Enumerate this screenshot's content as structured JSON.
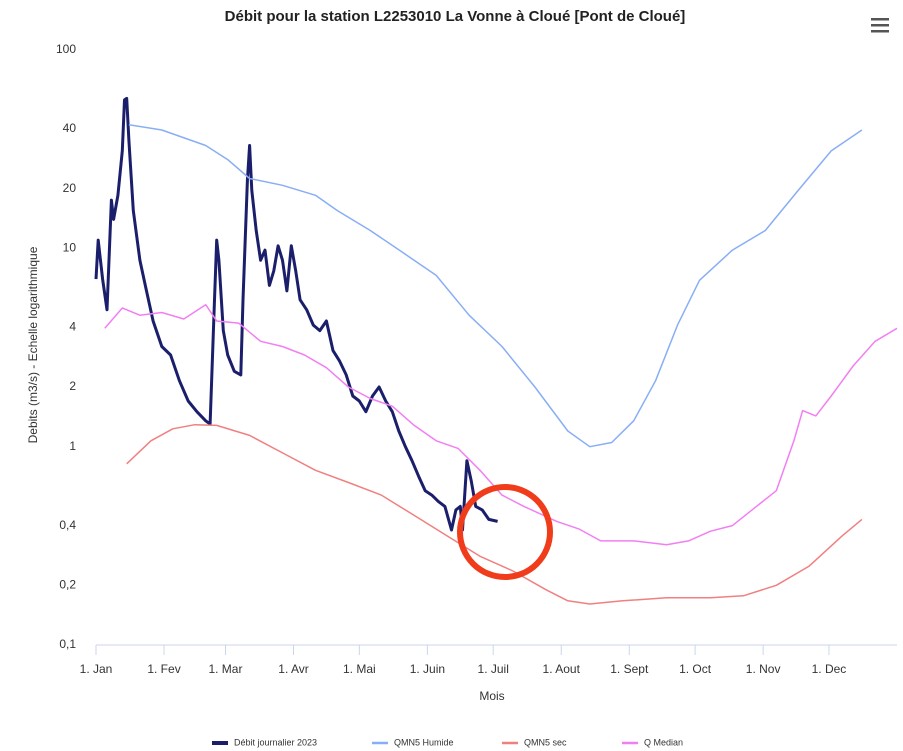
{
  "chart_data": {
    "type": "line",
    "title": "Débit pour la station L2253010 La Vonne à Cloué [Pont de Cloué]",
    "y_label": "Debits (m3/s) - Echelle logarithmique",
    "x_label": "Mois",
    "log_y": true,
    "grid": false,
    "legend": "bottom",
    "xlim": [
      0,
      365
    ],
    "xticks": [
      {
        "value": 0,
        "label": "1. Jan"
      },
      {
        "value": 31,
        "label": "1. Fev"
      },
      {
        "value": 59,
        "label": "1. Mar"
      },
      {
        "value": 90,
        "label": "1. Avr"
      },
      {
        "value": 120,
        "label": "1. Mai"
      },
      {
        "value": 151,
        "label": "1. Juin"
      },
      {
        "value": 181,
        "label": "1. Juil"
      },
      {
        "value": 212,
        "label": "1. Aout"
      },
      {
        "value": 243,
        "label": "1. Sept"
      },
      {
        "value": 273,
        "label": "1. Oct"
      },
      {
        "value": 304,
        "label": "1. Nov"
      },
      {
        "value": 334,
        "label": "1. Dec"
      }
    ],
    "ylim": [
      0.1,
      100
    ],
    "yticks": [
      {
        "value": 0.1,
        "label": "0,1"
      },
      {
        "value": 0.2,
        "label": "0,2"
      },
      {
        "value": 0.4,
        "label": "0,4"
      },
      1,
      2,
      4,
      10,
      20,
      40,
      100
    ],
    "series": [
      {
        "name": "Débit journalier 2023",
        "color": "#1b1f6b",
        "width": 3,
        "x": [
          0,
          1,
          3,
          5,
          7,
          8,
          10,
          12,
          13,
          14,
          15,
          17,
          20,
          23,
          26,
          30,
          34,
          38,
          42,
          46,
          50,
          52,
          54,
          55,
          56,
          58,
          60,
          63,
          66,
          67,
          69,
          70,
          71,
          73,
          75,
          77,
          79,
          81,
          83,
          85,
          87,
          89,
          91,
          93,
          96,
          99,
          102,
          105,
          108,
          111,
          114,
          117,
          120,
          123,
          126,
          129,
          132,
          135,
          138,
          141,
          144,
          147,
          150,
          153,
          156,
          159,
          162,
          164,
          166,
          167,
          168,
          169,
          171,
          173,
          176,
          179,
          183
        ],
        "values": [
          7,
          11,
          7,
          4.9,
          17.5,
          14,
          18.5,
          31,
          56,
          57,
          35,
          15.5,
          8.7,
          6.1,
          4.3,
          3.2,
          2.9,
          2.15,
          1.7,
          1.5,
          1.35,
          1.3,
          5.5,
          11,
          8.7,
          3.85,
          2.9,
          2.4,
          2.3,
          5.5,
          22,
          33,
          19.6,
          12.3,
          8.7,
          9.8,
          6.5,
          7.7,
          10.3,
          8.7,
          6.1,
          10.3,
          7.7,
          5.5,
          4.9,
          4.1,
          3.85,
          4.3,
          3.05,
          2.7,
          2.3,
          1.8,
          1.7,
          1.5,
          1.8,
          2,
          1.7,
          1.5,
          1.2,
          1,
          0.85,
          0.71,
          0.6,
          0.57,
          0.53,
          0.5,
          0.38,
          0.48,
          0.5,
          0.38,
          0.57,
          0.85,
          0.67,
          0.5,
          0.48,
          0.43,
          0.42
        ]
      },
      {
        "name": "QMN5 Humide",
        "color": "#88aef5",
        "width": 1.5,
        "x": [
          15,
          30,
          50,
          60,
          70,
          85,
          100,
          110,
          125,
          140,
          155,
          170,
          185,
          200,
          215,
          225,
          235,
          245,
          255,
          265,
          275,
          290,
          305,
          320,
          335,
          349
        ],
        "values": [
          42,
          39.5,
          33,
          28,
          22.5,
          20.8,
          18.5,
          15.5,
          12.3,
          9.5,
          7.3,
          4.6,
          3.2,
          2,
          1.2,
          1,
          1.05,
          1.35,
          2.15,
          4.1,
          6.9,
          9.8,
          12.3,
          19.6,
          31,
          39.5
        ]
      },
      {
        "name": "QMN5 sec",
        "color": "#f08080",
        "width": 1.5,
        "x": [
          14,
          25,
          35,
          45,
          55,
          70,
          85,
          100,
          115,
          130,
          145,
          160,
          175,
          190,
          205,
          215,
          225,
          240,
          260,
          280,
          295,
          310,
          325,
          340,
          349
        ],
        "values": [
          0.82,
          1.07,
          1.23,
          1.29,
          1.28,
          1.14,
          0.93,
          0.76,
          0.66,
          0.57,
          0.45,
          0.355,
          0.28,
          0.236,
          0.19,
          0.167,
          0.161,
          0.167,
          0.173,
          0.173,
          0.177,
          0.2,
          0.25,
          0.355,
          0.43
        ]
      },
      {
        "name": "Q Median",
        "color": "#f27ff2",
        "width": 1.5,
        "x": [
          4,
          12,
          20,
          30,
          40,
          50,
          55,
          65,
          75,
          85,
          95,
          105,
          115,
          125,
          135,
          145,
          155,
          165,
          175,
          185,
          195,
          210,
          220,
          230,
          245,
          260,
          270,
          280,
          290,
          300,
          310,
          318,
          322,
          328,
          335,
          345,
          355,
          365
        ],
        "values": [
          3.95,
          5,
          4.6,
          4.75,
          4.4,
          5.2,
          4.3,
          4.2,
          3.4,
          3.2,
          2.9,
          2.5,
          2,
          1.75,
          1.6,
          1.28,
          1.07,
          0.98,
          0.76,
          0.57,
          0.5,
          0.42,
          0.385,
          0.335,
          0.335,
          0.32,
          0.335,
          0.375,
          0.4,
          0.49,
          0.6,
          1.07,
          1.52,
          1.43,
          1.8,
          2.55,
          3.4,
          3.95
        ]
      }
    ]
  }
}
